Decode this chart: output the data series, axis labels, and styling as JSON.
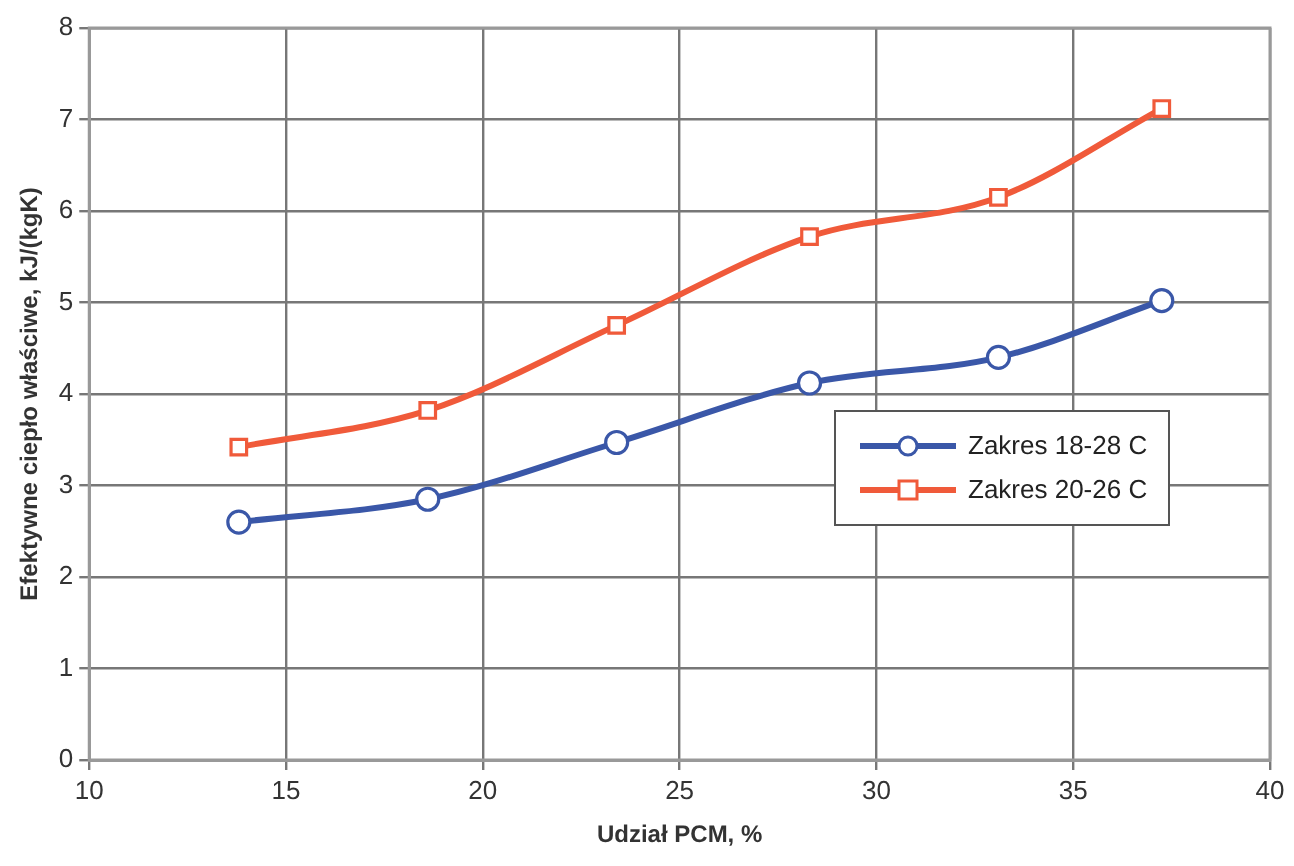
{
  "chart_data": {
    "type": "line",
    "xlabel": "Udział PCM, %",
    "ylabel": "Efektywne ciepło właściwe, kJ/(kgK)",
    "x": [
      13.8,
      18.6,
      23.4,
      28.3,
      33.1,
      37.25
    ],
    "series": [
      {
        "name": "Zakres 18-28 C",
        "color": "#3a57a8",
        "marker": "circle",
        "values": [
          2.6,
          2.85,
          3.47,
          4.12,
          4.4,
          5.02
        ]
      },
      {
        "name": "Zakres 20-26 C",
        "color": "#f05a3a",
        "marker": "square",
        "values": [
          3.42,
          3.82,
          4.75,
          5.72,
          6.15,
          7.12
        ]
      }
    ],
    "xlim": [
      10,
      40
    ],
    "xticks": [
      10,
      15,
      20,
      25,
      30,
      35,
      40
    ],
    "ylim": [
      0,
      8
    ],
    "yticks": [
      0,
      1,
      2,
      3,
      4,
      5,
      6,
      7,
      8
    ],
    "grid": true,
    "legend": "right",
    "line_style": "solid"
  }
}
